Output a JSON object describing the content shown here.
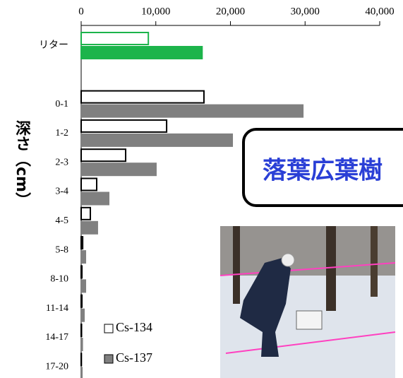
{
  "chart_data": {
    "type": "barh",
    "y_label": "深さ（cm）",
    "categories": [
      "リター",
      null,
      "0-1",
      "1-2",
      "2-3",
      "3-4",
      "4-5",
      "5-8",
      "8-10",
      "11-14",
      "14-17",
      "17-20"
    ],
    "series": [
      {
        "name": "Cs-134",
        "color": "#ffffff",
        "edge": "#000000",
        "values": [
          9000,
          null,
          16450,
          11450,
          5960,
          2080,
          1230,
          200,
          100,
          100,
          50,
          30
        ],
        "colors": [
          "#ffffff",
          null,
          "#ffffff",
          "#ffffff",
          "#ffffff",
          "#ffffff",
          "#ffffff",
          "#ffffff",
          "#ffffff",
          "#ffffff",
          "#ffffff",
          "#ffffff"
        ],
        "edges": [
          "#1cb44b",
          null,
          "#000000",
          "#000000",
          "#000000",
          "#000000",
          "#000000",
          "#000000",
          "#000000",
          "#000000",
          "#000000",
          "#000000"
        ]
      },
      {
        "name": "Cs-137",
        "color": "#808080",
        "edge": "#808080",
        "values": [
          16200,
          null,
          29700,
          20240,
          10020,
          3690,
          2170,
          570,
          570,
          380,
          150,
          100
        ],
        "colors": [
          "#1cb44b",
          null,
          "#808080",
          "#808080",
          "#808080",
          "#808080",
          "#808080",
          "#808080",
          "#808080",
          "#808080",
          "#808080",
          "#808080"
        ],
        "edges": [
          "#1cb44b",
          null,
          "#808080",
          "#808080",
          "#808080",
          "#808080",
          "#808080",
          "#808080",
          "#808080",
          "#808080",
          "#808080",
          "#808080"
        ]
      }
    ],
    "xlim": [
      0,
      40000
    ],
    "xticks": [
      0,
      {
        "value": 10000,
        "label": "10,000"
      },
      {
        "value": 20000,
        "label": "20,000"
      },
      {
        "value": 30000,
        "label": "30,000"
      },
      {
        "value": 40000,
        "label": "40,000"
      }
    ],
    "overlay_label": "落葉広葉樹"
  }
}
